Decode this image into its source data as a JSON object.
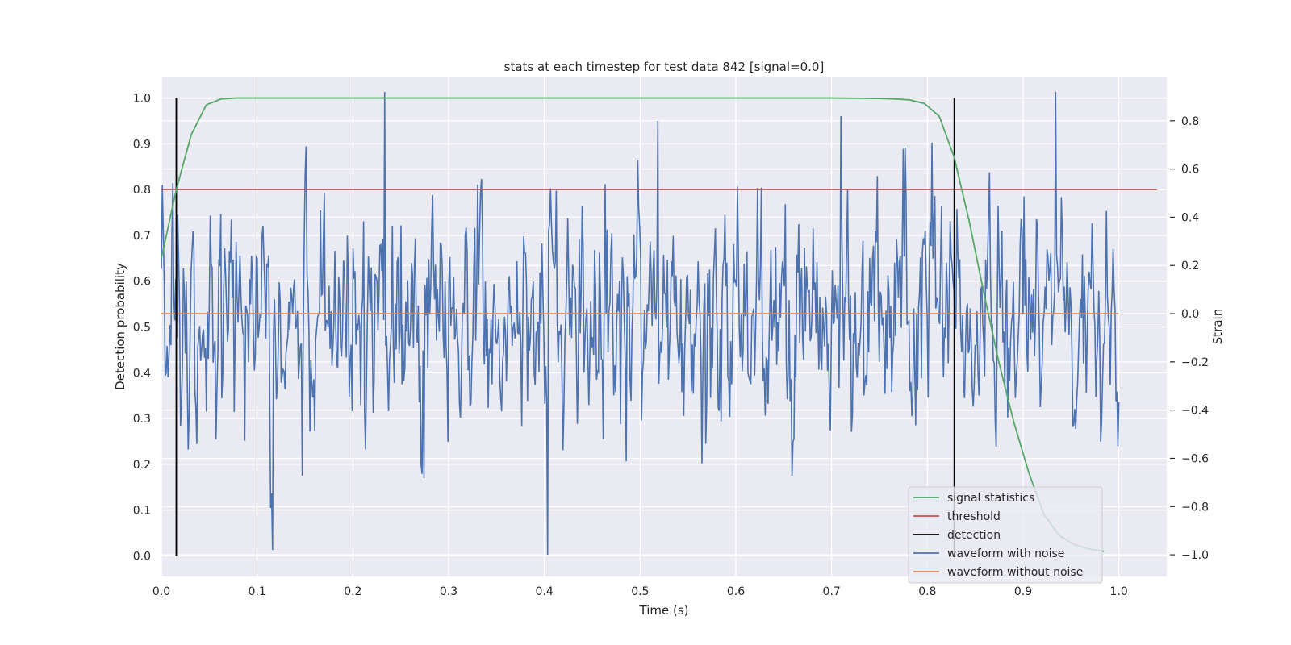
{
  "chart_data": {
    "type": "line",
    "title": "stats at each timestep for test data 842 [signal=0.0]",
    "xlabel": "Time (s)",
    "ylabel_left": "Detection probability",
    "ylabel_right": "Strain",
    "xlim": [
      0.0,
      1.05
    ],
    "ylim_left": [
      -0.045,
      1.045
    ],
    "ylim_right": [
      -1.09,
      0.98
    ],
    "x_ticks": [
      0.0,
      0.1,
      0.2,
      0.3,
      0.4,
      0.5,
      0.6,
      0.7,
      0.8,
      0.9,
      1.0
    ],
    "x_tick_labels": [
      "0.0",
      "0.1",
      "0.2",
      "0.3",
      "0.4",
      "0.5",
      "0.6",
      "0.7",
      "0.8",
      "0.9",
      "1.0"
    ],
    "y_left_ticks": [
      0.0,
      0.1,
      0.2,
      0.3,
      0.4,
      0.5,
      0.6,
      0.7,
      0.8,
      0.9,
      1.0
    ],
    "y_left_tick_labels": [
      "0.0",
      "0.1",
      "0.2",
      "0.3",
      "0.4",
      "0.5",
      "0.6",
      "0.7",
      "0.8",
      "0.9",
      "1.0"
    ],
    "y_right_ticks": [
      -1.0,
      -0.8,
      -0.6,
      -0.4,
      -0.2,
      0.0,
      0.2,
      0.4,
      0.6,
      0.8
    ],
    "y_right_tick_labels": [
      "−1.0",
      "−0.8",
      "−0.6",
      "−0.4",
      "−0.2",
      "0.0",
      "0.2",
      "0.4",
      "0.6",
      "0.8"
    ],
    "grid": true,
    "legend_position": "bottom-right",
    "colors": {
      "background": "#eaeaf2",
      "grid": "#ffffff",
      "signal_statistics": "#55a868",
      "threshold": "#c44e52",
      "detection": "#000000",
      "waveform_with_noise": "#4c72b0",
      "waveform_without_noise": "#dd8452"
    },
    "series": [
      {
        "name": "signal statistics",
        "axis": "left",
        "x": [
          0.0,
          0.0156,
          0.0312,
          0.0469,
          0.0625,
          0.0781,
          0.0938,
          0.2,
          0.4,
          0.6,
          0.7,
          0.75,
          0.7656,
          0.7812,
          0.7969,
          0.8125,
          0.8281,
          0.8438,
          0.8594,
          0.875,
          0.8906,
          0.9062,
          0.9219,
          0.9375,
          0.9531,
          0.9688,
          0.9844
        ],
        "values": [
          0.65,
          0.8,
          0.92,
          0.985,
          0.998,
          1.0,
          1.0,
          1.0,
          1.0,
          1.0,
          1.0,
          0.999,
          0.998,
          0.996,
          0.988,
          0.96,
          0.87,
          0.73,
          0.57,
          0.42,
          0.29,
          0.18,
          0.09,
          0.045,
          0.025,
          0.015,
          0.01
        ]
      },
      {
        "name": "threshold",
        "axis": "left",
        "x": [
          0.0,
          1.04
        ],
        "values": [
          0.8,
          0.8
        ]
      },
      {
        "name": "detection",
        "axis": "left",
        "segments": [
          {
            "x": 0.0156,
            "y": [
              0.0,
              1.0
            ]
          },
          {
            "x": 0.8281,
            "y": [
              0.0,
              1.0
            ]
          }
        ]
      },
      {
        "name": "waveform with noise",
        "axis": "right",
        "x_start": 0.0,
        "x_end": 1.0,
        "samples": 1000,
        "amplitude_range": [
          -1.0,
          0.92
        ],
        "sample_points": [
          {
            "x": 0.116,
            "y": -0.98
          },
          {
            "x": 0.233,
            "y": 0.92
          },
          {
            "x": 0.403,
            "y": -1.0
          },
          {
            "x": 0.519,
            "y": 0.8
          },
          {
            "x": 0.934,
            "y": 0.92
          }
        ]
      },
      {
        "name": "waveform without noise",
        "axis": "right",
        "x": [
          0.0,
          1.0
        ],
        "values": [
          0.0,
          0.0
        ]
      }
    ],
    "legend": [
      "signal statistics",
      "threshold",
      "detection",
      "waveform with noise",
      "waveform without noise"
    ]
  }
}
